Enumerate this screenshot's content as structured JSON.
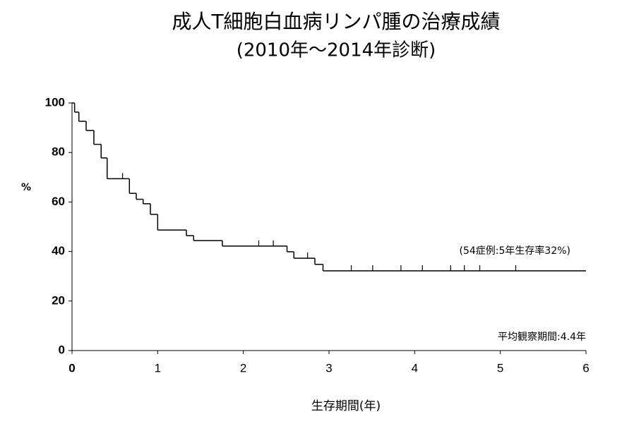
{
  "chart_data": {
    "type": "step",
    "title": "成人T細胞白血病リンパ腫の治療成績",
    "subtitle": "(2010年～2014年診断)",
    "xlabel": "生存期間(年)",
    "ylabel": "%",
    "annotations": [
      "(54症例:5年生存率32%)",
      "平均観察期間:4.4年"
    ],
    "xlim": [
      0,
      6
    ],
    "xticks": [
      0,
      1,
      2,
      3,
      4,
      5,
      6
    ],
    "ylim": [
      0,
      100
    ],
    "yticks": [
      0,
      20,
      40,
      60,
      80,
      100
    ],
    "color": "#000000",
    "series": [
      {
        "x": [
          0,
          0.03,
          0.08,
          0.165,
          0.255,
          0.34,
          0.41,
          0.67,
          0.75,
          0.83,
          0.915,
          1.0,
          1.335,
          1.42,
          1.755,
          2.51,
          2.59,
          2.835,
          2.93,
          6.0
        ],
        "values": [
          100,
          96.3,
          92.6,
          88.9,
          83.3,
          77.8,
          69.4,
          63.5,
          61.1,
          59.3,
          55,
          48.7,
          46.4,
          44.4,
          42.2,
          39.9,
          37.3,
          34.8,
          32.2,
          32.2
        ]
      },
      {
        "x": [
          0.59,
          2.18,
          2.35,
          2.75,
          3.26,
          3.51,
          3.84,
          4.09,
          4.42,
          4.58,
          4.76,
          5.18
        ],
        "values": [
          69.4,
          42.2,
          42.2,
          37.3,
          32.2,
          32.2,
          32.2,
          32.2,
          32.2,
          32.2,
          32.2,
          32.2
        ]
      }
    ]
  }
}
